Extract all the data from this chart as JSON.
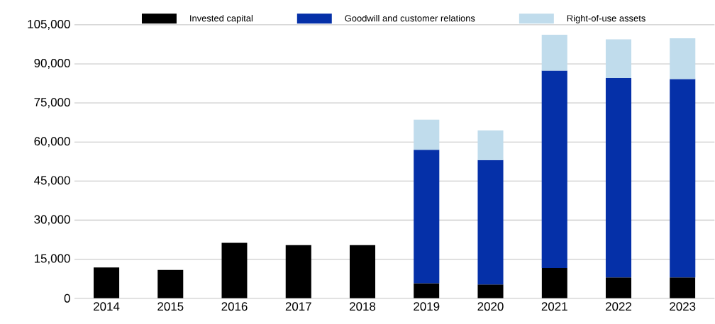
{
  "chart_data": {
    "type": "bar",
    "stacked": true,
    "categories": [
      "2014",
      "2015",
      "2016",
      "2017",
      "2018",
      "2019",
      "2020",
      "2021",
      "2022",
      "2023"
    ],
    "series": [
      {
        "name": "Invested capital",
        "color": "#000000",
        "values": [
          11800,
          10900,
          21300,
          20400,
          20400,
          5800,
          5300,
          11600,
          8000,
          8000
        ]
      },
      {
        "name": "Goodwill and customer relations",
        "color": "#0530a8",
        "values": [
          null,
          null,
          null,
          null,
          null,
          51200,
          47800,
          75800,
          76600,
          76200
        ]
      },
      {
        "name": "Right-of-use assets",
        "color": "#c0dcec",
        "values": [
          null,
          null,
          null,
          null,
          null,
          11600,
          11300,
          13800,
          14800,
          15600
        ]
      }
    ],
    "ylim": [
      0,
      105000
    ],
    "yticks": [
      0,
      {
        "value": 15000,
        "label": "15,000"
      },
      {
        "value": 30000,
        "label": "30,000"
      },
      {
        "value": 45000,
        "label": "45,000"
      },
      {
        "value": 60000,
        "label": "60,000"
      },
      {
        "value": 75000,
        "label": "75,000"
      },
      {
        "value": 90000,
        "label": "90,000"
      },
      {
        "value": 105000,
        "label": "105,000"
      }
    ],
    "grid": "y",
    "legend": "top"
  }
}
